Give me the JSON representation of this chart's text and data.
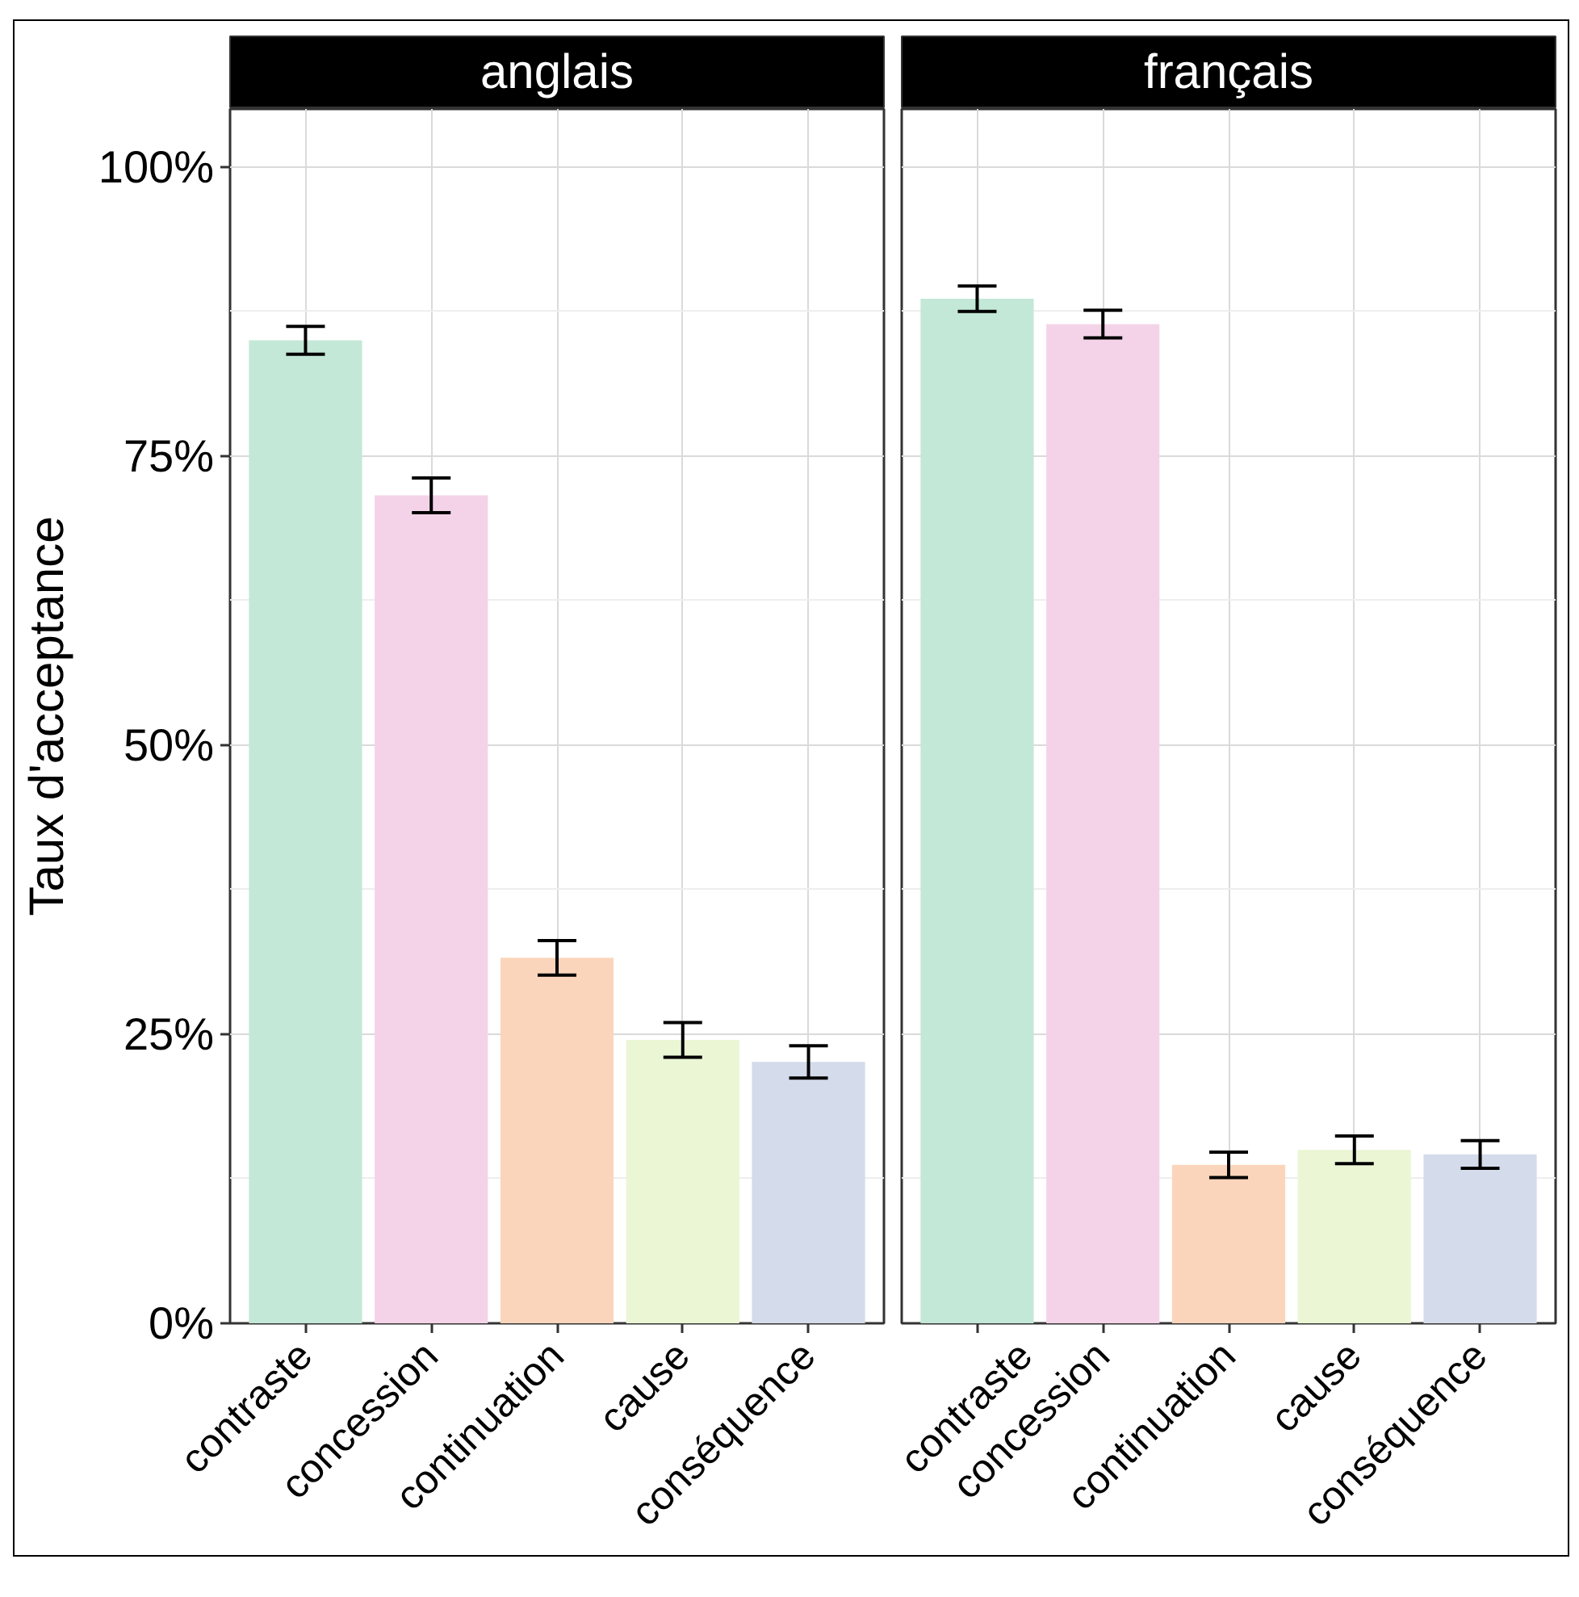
{
  "chart_data": [
    {
      "type": "bar",
      "title": "anglais",
      "ylabel": "Taux d'acceptance",
      "categories": [
        "contraste",
        "concession",
        "continuation",
        "cause",
        "conséquence"
      ],
      "values": [
        85.0,
        71.6,
        31.6,
        24.5,
        22.6
      ],
      "errors": [
        1.2,
        1.5,
        1.5,
        1.5,
        1.4
      ],
      "colors": [
        "#c3e8d7",
        "#f4d3e9",
        "#fbd5bb",
        "#eaf6d4",
        "#d4dbeb"
      ],
      "ylim": [
        0,
        105
      ],
      "yticks": [
        {
          "value": 0,
          "label": "0%"
        },
        {
          "value": 25,
          "label": "25%"
        },
        {
          "value": 50,
          "label": "50%"
        },
        {
          "value": 75,
          "label": "75%"
        },
        {
          "value": 100,
          "label": "100%"
        }
      ],
      "grid": true
    },
    {
      "type": "bar",
      "title": "français",
      "categories": [
        "contraste",
        "concession",
        "continuation",
        "cause",
        "conséquence"
      ],
      "values": [
        88.6,
        86.4,
        13.7,
        15.0,
        14.6
      ],
      "errors": [
        1.1,
        1.2,
        1.1,
        1.2,
        1.2
      ],
      "colors": [
        "#c3e8d7",
        "#f4d3e9",
        "#fbd5bb",
        "#eaf6d4",
        "#d4dbeb"
      ],
      "ylim": [
        0,
        105
      ],
      "yticks": [
        0,
        25,
        50,
        75,
        100
      ],
      "tick_labels": "x",
      "grid": true
    }
  ]
}
